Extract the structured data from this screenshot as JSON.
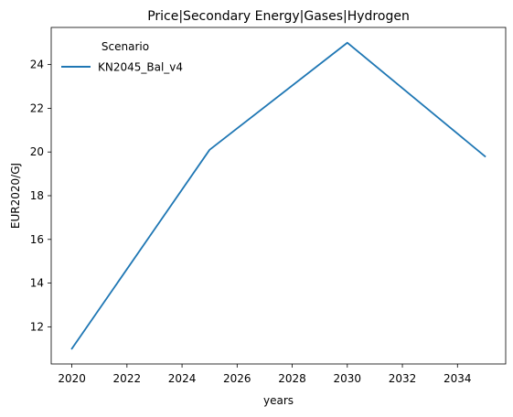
{
  "chart_data": {
    "type": "line",
    "title": "Price|Secondary Energy|Gases|Hydrogen",
    "xlabel": "years",
    "ylabel": "EUR2020/GJ",
    "x": [
      2020,
      2025,
      2030,
      2035
    ],
    "series": [
      {
        "name": "KN2045_Bal_v4",
        "values": [
          11.0,
          20.1,
          25.0,
          19.8
        ],
        "color": "#1f77b4"
      }
    ],
    "xticks": [
      2020,
      2022,
      2024,
      2026,
      2028,
      2030,
      2032,
      2034
    ],
    "yticks": [
      12,
      14,
      16,
      18,
      20,
      22,
      24
    ],
    "xlim": [
      2019.25,
      2035.75
    ],
    "ylim": [
      10.3,
      25.7
    ],
    "legend": {
      "title": "Scenario",
      "placement": "top-left"
    },
    "grid": false
  }
}
